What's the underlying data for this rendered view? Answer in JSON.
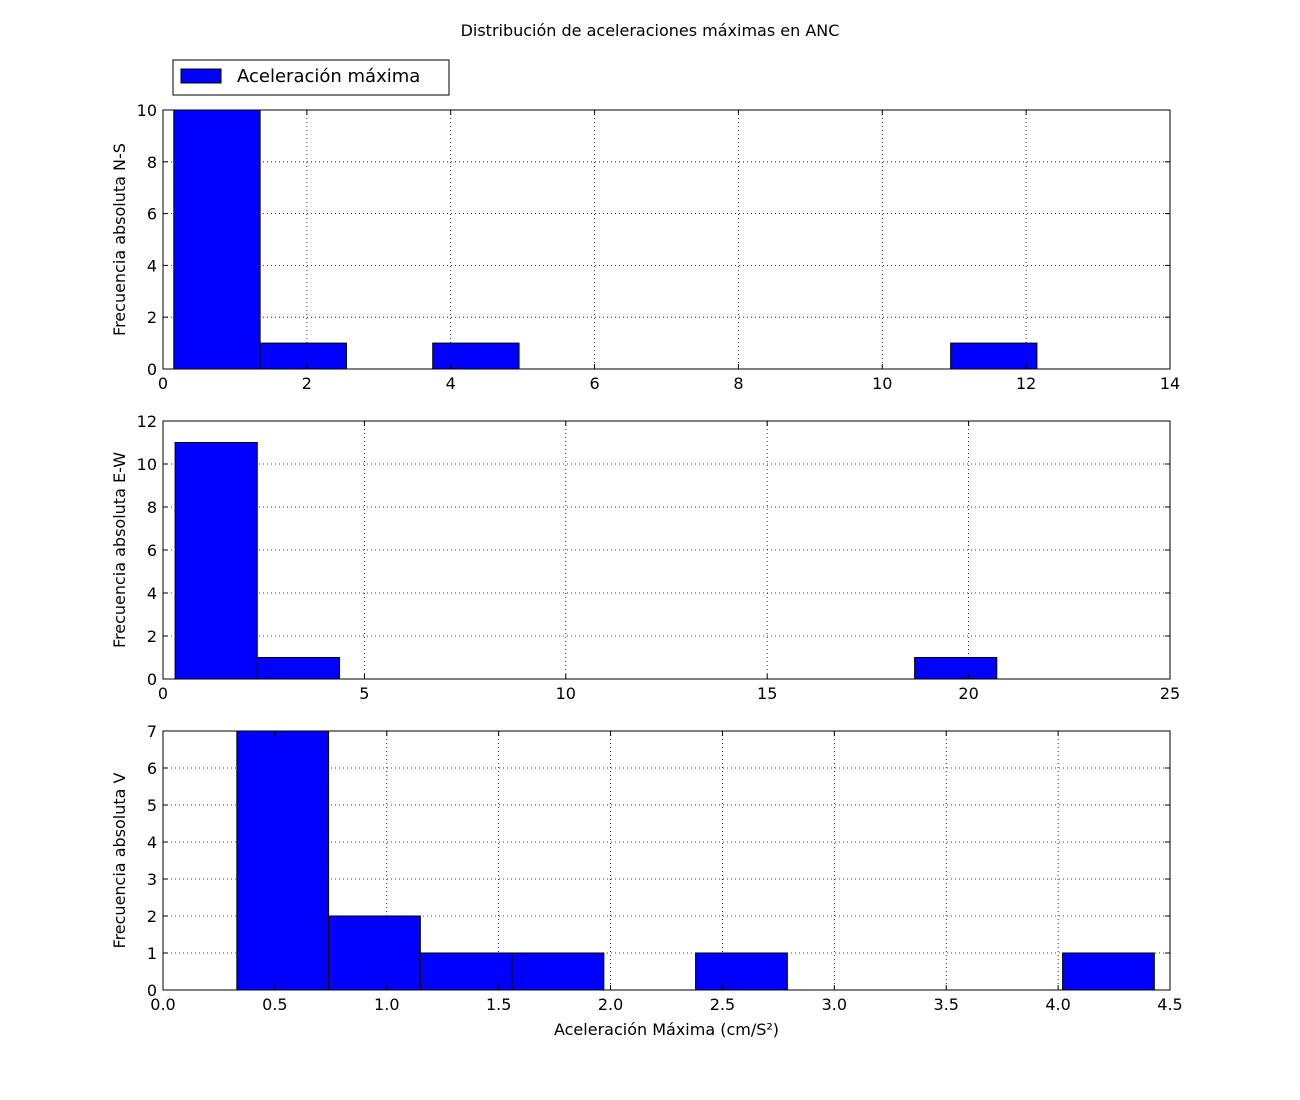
{
  "figure": {
    "title": "Distribución de aceleraciones máximas en ANC",
    "legend_label": "Aceleración máxima",
    "legend_placement": "top-left, above first subplot"
  },
  "colors": {
    "bar_fill": "#0000ff",
    "bar_edge": "#000000",
    "grid": "#000000",
    "background": "#ffffff"
  },
  "chart_data": [
    {
      "type": "bar",
      "histogram": true,
      "ylabel": "Frecuencia absoluta N-S",
      "xlabel": "",
      "xlim": [
        0,
        14
      ],
      "ylim": [
        0,
        10
      ],
      "xticks": [
        0,
        2,
        4,
        6,
        8,
        10,
        12,
        14
      ],
      "yticks": [
        0,
        2,
        4,
        6,
        8,
        10
      ],
      "grid": true,
      "series": [
        {
          "bins": [
            [
              0.15,
              1.35
            ],
            [
              1.35,
              2.55
            ],
            [
              2.55,
              3.75
            ],
            [
              3.75,
              4.95
            ],
            [
              4.95,
              6.15
            ],
            [
              6.15,
              7.35
            ],
            [
              7.35,
              8.55
            ],
            [
              8.55,
              9.75
            ],
            [
              9.75,
              10.95
            ],
            [
              10.95,
              12.15
            ]
          ],
          "values": [
            10,
            1,
            0,
            1,
            0,
            0,
            0,
            0,
            0,
            1
          ]
        }
      ]
    },
    {
      "type": "bar",
      "histogram": true,
      "ylabel": "Frecuencia absoluta E-W",
      "xlabel": "",
      "xlim": [
        0,
        25
      ],
      "ylim": [
        0,
        12
      ],
      "xticks": [
        0,
        5,
        10,
        15,
        20,
        25
      ],
      "yticks": [
        0,
        2,
        4,
        6,
        8,
        10,
        12
      ],
      "grid": true,
      "series": [
        {
          "bins": [
            [
              0.3,
              2.34
            ],
            [
              2.34,
              4.38
            ],
            [
              4.38,
              6.42
            ],
            [
              6.42,
              8.46
            ],
            [
              8.46,
              10.5
            ],
            [
              10.5,
              12.54
            ],
            [
              12.54,
              14.58
            ],
            [
              14.58,
              16.62
            ],
            [
              16.62,
              18.66
            ],
            [
              18.66,
              20.7
            ]
          ],
          "values": [
            11,
            1,
            0,
            0,
            0,
            0,
            0,
            0,
            0,
            1
          ]
        }
      ]
    },
    {
      "type": "bar",
      "histogram": true,
      "ylabel": "Frecuencia absoluta V",
      "xlabel": "Aceleración Máxima (cm/S²)",
      "xlim": [
        0,
        4.5
      ],
      "ylim": [
        0,
        7
      ],
      "xticks": [
        0.0,
        0.5,
        1.0,
        1.5,
        2.0,
        2.5,
        3.0,
        3.5,
        4.0,
        4.5
      ],
      "xtick_labels": [
        "0.0",
        "0.5",
        "1.0",
        "1.5",
        "2.0",
        "2.5",
        "3.0",
        "3.5",
        "4.0",
        "4.5"
      ],
      "yticks": [
        0,
        1,
        2,
        3,
        4,
        5,
        6,
        7
      ],
      "grid": true,
      "series": [
        {
          "bins": [
            [
              0.33,
              0.74
            ],
            [
              0.74,
              1.15
            ],
            [
              1.15,
              1.56
            ],
            [
              1.56,
              1.97
            ],
            [
              1.97,
              2.38
            ],
            [
              2.38,
              2.79
            ],
            [
              2.79,
              3.2
            ],
            [
              3.2,
              3.61
            ],
            [
              3.61,
              4.02
            ],
            [
              4.02,
              4.43
            ]
          ],
          "values": [
            7,
            2,
            1,
            1,
            0,
            1,
            0,
            0,
            0,
            1
          ]
        }
      ]
    }
  ]
}
